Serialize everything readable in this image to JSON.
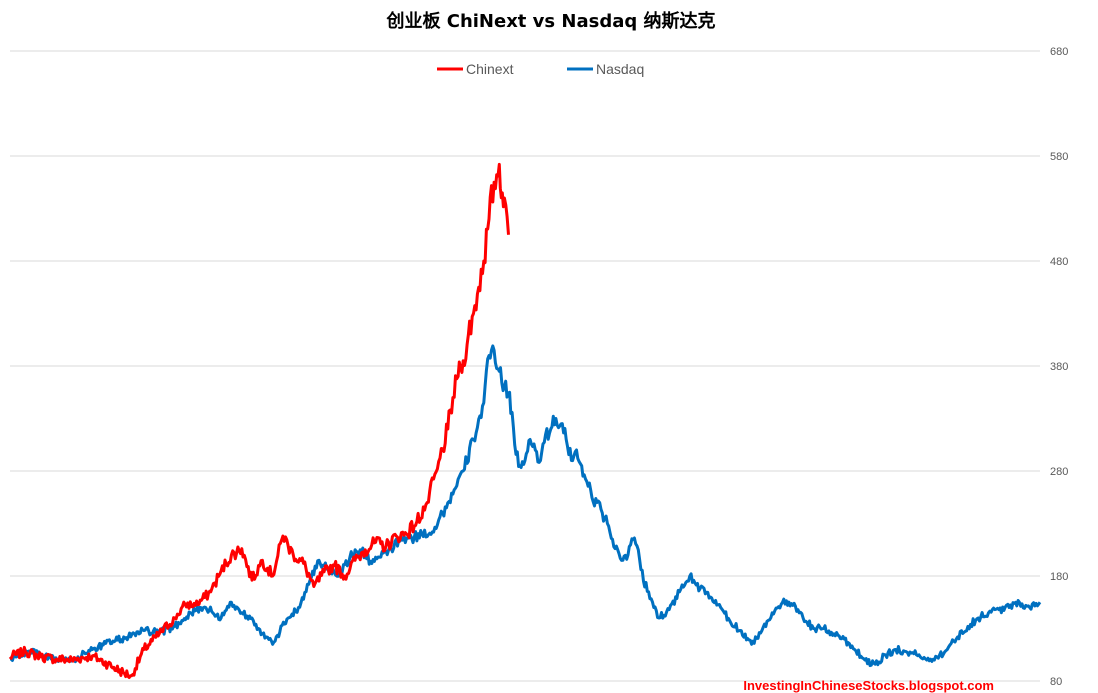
{
  "chart_data": {
    "type": "line",
    "title": "创业板 ChiNext vs Nasdaq 纳斯达克",
    "xlabel": "",
    "ylabel": "",
    "ylim": [
      80,
      680
    ],
    "yticks": [
      "80",
      "180",
      "280",
      "380",
      "480",
      "580",
      "680"
    ],
    "grid": true,
    "legend_position": "top-center",
    "x_index_range": [
      0,
      1000
    ],
    "series": [
      {
        "name": "Chinext",
        "color": "#ff0000",
        "x": [
          0,
          15,
          30,
          45,
          60,
          80,
          95,
          110,
          118,
          130,
          145,
          160,
          170,
          180,
          195,
          205,
          215,
          225,
          235,
          245,
          255,
          265,
          275,
          285,
          295,
          305,
          315,
          325,
          335,
          345,
          355,
          365,
          375,
          385,
          395,
          405,
          415,
          425,
          430,
          435,
          440,
          445,
          450,
          455,
          460,
          465,
          470,
          475,
          478,
          480,
          484
        ],
        "values": [
          103,
          108,
          103,
          101,
          100,
          104,
          96,
          88,
          85,
          110,
          125,
          140,
          153,
          152,
          165,
          185,
          200,
          206,
          176,
          195,
          180,
          218,
          200,
          192,
          170,
          184,
          190,
          180,
          195,
          205,
          212,
          208,
          218,
          220,
          232,
          250,
          282,
          320,
          350,
          370,
          385,
          410,
          430,
          455,
          480,
          520,
          555,
          572,
          545,
          540,
          505
        ]
      },
      {
        "name": "Nasdaq",
        "color": "#0070c0",
        "x": [
          0,
          20,
          40,
          60,
          80,
          100,
          115,
          130,
          145,
          160,
          175,
          190,
          205,
          215,
          225,
          235,
          245,
          255,
          262,
          270,
          280,
          290,
          300,
          310,
          320,
          330,
          340,
          350,
          360,
          370,
          380,
          390,
          400,
          410,
          420,
          430,
          440,
          450,
          460,
          465,
          470,
          475,
          480,
          485,
          490,
          495,
          500,
          505,
          510,
          515,
          520,
          525,
          530,
          535,
          540,
          545,
          550,
          555,
          560,
          565,
          570,
          575,
          580,
          585,
          590,
          595,
          600,
          605,
          610,
          615,
          620,
          625,
          630,
          640,
          650,
          660,
          670,
          680,
          690,
          700,
          710,
          720,
          730,
          740,
          750,
          760,
          770,
          780,
          790,
          800,
          810,
          820,
          830,
          840,
          850,
          860,
          870,
          880,
          890,
          900,
          910,
          920,
          930,
          940,
          950,
          960,
          970,
          980,
          990,
          1000
        ],
        "values": [
          101,
          108,
          101,
          99,
          110,
          118,
          122,
          128,
          126,
          132,
          145,
          150,
          140,
          155,
          145,
          140,
          125,
          115,
          127,
          140,
          150,
          172,
          195,
          185,
          182,
          198,
          205,
          194,
          198,
          206,
          215,
          216,
          220,
          222,
          240,
          258,
          280,
          310,
          345,
          390,
          395,
          375,
          360,
          355,
          305,
          285,
          290,
          310,
          300,
          290,
          315,
          320,
          330,
          325,
          310,
          290,
          300,
          285,
          270,
          255,
          250,
          240,
          230,
          215,
          205,
          195,
          200,
          215,
          205,
          175,
          165,
          150,
          140,
          148,
          165,
          180,
          168,
          160,
          150,
          135,
          128,
          115,
          128,
          145,
          155,
          152,
          140,
          130,
          130,
          125,
          120,
          110,
          100,
          96,
          105,
          110,
          108,
          105,
          100,
          103,
          110,
          122,
          132,
          140,
          145,
          148,
          150,
          155,
          150,
          155
        ]
      }
    ]
  },
  "watermark": "InvestingInChineseStocks.blogspot.com"
}
